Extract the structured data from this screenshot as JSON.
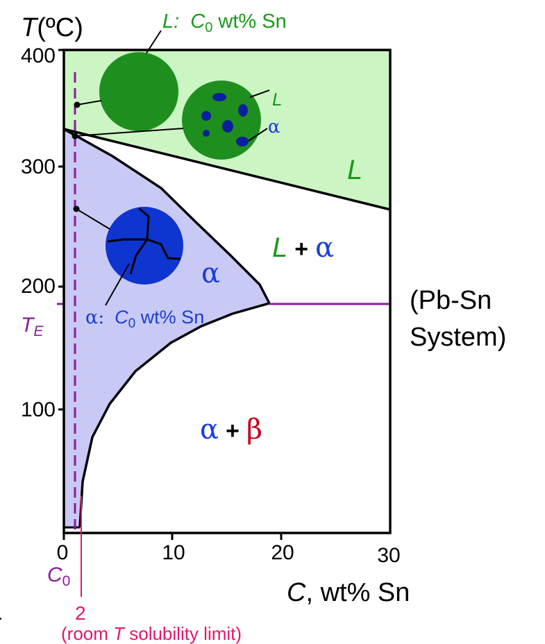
{
  "colors": {
    "liquid_region": "#ccf5c4",
    "alpha_region": "#c9c9f5",
    "liquid_text": "#1a9a1a",
    "alpha_text": "#1a3ed6",
    "beta_text": "#c4001a",
    "eutectic_line": "#8a1a9a",
    "composition_marker": "#e0186e",
    "grain_green": "#1e8f1e",
    "grain_blue": "#0f35d0",
    "grain_dark_blue": "#0a1f9a"
  },
  "axes": {
    "y_title_var": "T",
    "y_title_unit": "(ºC)",
    "y_ticks": [
      {
        "label": "100",
        "value": 100
      },
      {
        "label": "200",
        "value": 200
      },
      {
        "label": "300",
        "value": 300
      },
      {
        "label": "400",
        "value": 400
      }
    ],
    "x_ticks": [
      {
        "label": "0",
        "value": 0
      },
      {
        "label": "10",
        "value": 10
      },
      {
        "label": "20",
        "value": 20
      },
      {
        "label": "30",
        "value": 30
      }
    ],
    "x_title_var": "C",
    "x_title_unit": ", wt% Sn",
    "x_range": [
      0,
      30
    ],
    "y_range": [
      0,
      400
    ]
  },
  "regions": {
    "liquid": "L",
    "two_phase_L": "L",
    "two_phase_plus": "+",
    "two_phase_alpha": "α",
    "alpha": "α",
    "ab_alpha": "α",
    "ab_plus": "+",
    "ab_beta": "β"
  },
  "annotations": {
    "liquid_comp_var": "L:",
    "liquid_comp_c": "C",
    "liquid_comp_sub": "0",
    "liquid_comp_rest": " wt% Sn",
    "small_L": "L",
    "small_alpha": "α",
    "alpha_comp_var": "α:",
    "alpha_comp_c": "C",
    "alpha_comp_sub": "0",
    "alpha_comp_rest": " wt% Sn",
    "te_var": "T",
    "te_sub": "E",
    "c0_var": "C",
    "c0_sub": "0",
    "solubility_value": "2",
    "solubility_open": "(room ",
    "solubility_var": "T",
    "solubility_rest": " solubility limit)",
    "system_line1": "(Pb-Sn",
    "system_line2": "System)",
    "edge_fragment": "."
  },
  "diagram_values": {
    "eutectic_temperature": 183,
    "composition_C0": 1,
    "room_T_solubility_limit": 2,
    "pb_melting_point": 327,
    "alpha_max_solubility": 18.3,
    "liquidus_endpoint_temperature": 260
  }
}
